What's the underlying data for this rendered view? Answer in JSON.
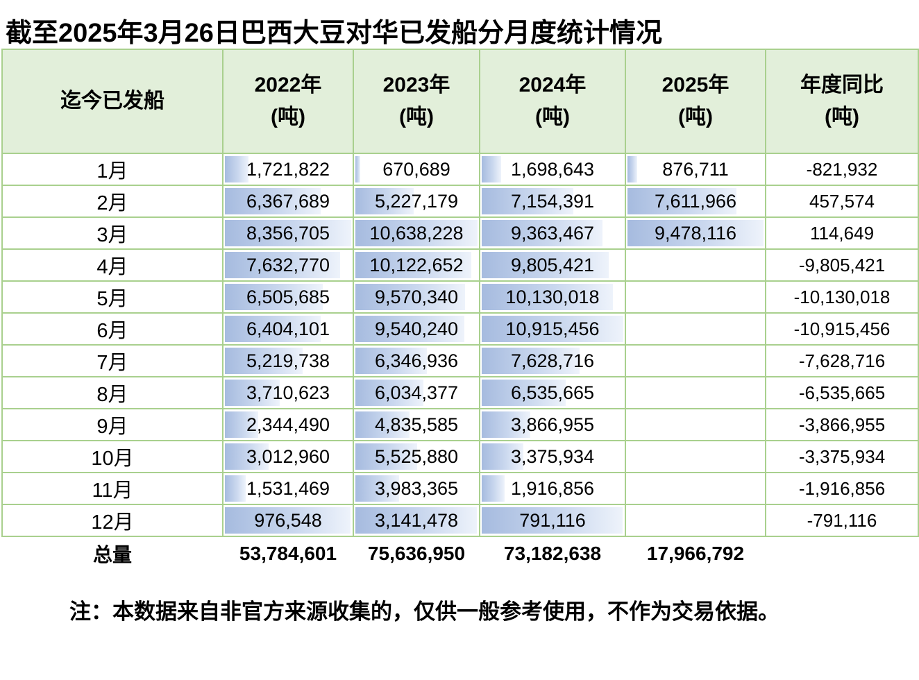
{
  "title": "截至2025年3月26日巴西大豆对华已发船分月度统计情况",
  "note": "注：本数据来自非官方来源收集的，仅供一般参考使用，不作为交易依据。",
  "colors": {
    "header_bg": "#e2efda",
    "grid_border": "#a9d08e",
    "data_bar_start": "#a6bbdf",
    "data_bar_end": "#eef3fb"
  },
  "table": {
    "header": {
      "col1": "迄今已发船",
      "years": [
        {
          "line1": "2022年",
          "line2": "(吨)"
        },
        {
          "line1": "2023年",
          "line2": "(吨)"
        },
        {
          "line1": "2024年",
          "line2": "(吨)"
        },
        {
          "line1": "2025年",
          "line2": "(吨)"
        }
      ],
      "yoy": {
        "line1": "年度同比",
        "line2": "(吨)"
      }
    },
    "rows": [
      {
        "month": "1月",
        "v2022": "1,721,822",
        "v2023": "670,689",
        "v2024": "1,698,643",
        "v2025": "876,711",
        "yoy": "-821,932"
      },
      {
        "month": "2月",
        "v2022": "6,367,689",
        "v2023": "5,227,179",
        "v2024": "7,154,391",
        "v2025": "7,611,966",
        "yoy": "457,574"
      },
      {
        "month": "3月",
        "v2022": "8,356,705",
        "v2023": "10,638,228",
        "v2024": "9,363,467",
        "v2025": "9,478,116",
        "yoy": "114,649"
      },
      {
        "month": "4月",
        "v2022": "7,632,770",
        "v2023": "10,122,652",
        "v2024": "9,805,421",
        "v2025": "",
        "yoy": "-9,805,421"
      },
      {
        "month": "5月",
        "v2022": "6,505,685",
        "v2023": "9,570,340",
        "v2024": "10,130,018",
        "v2025": "",
        "yoy": "-10,130,018"
      },
      {
        "month": "6月",
        "v2022": "6,404,101",
        "v2023": "9,540,240",
        "v2024": "10,915,456",
        "v2025": "",
        "yoy": "-10,915,456"
      },
      {
        "month": "7月",
        "v2022": "5,219,738",
        "v2023": "6,346,936",
        "v2024": "7,628,716",
        "v2025": "",
        "yoy": "-7,628,716"
      },
      {
        "month": "8月",
        "v2022": "3,710,623",
        "v2023": "6,034,377",
        "v2024": "6,535,665",
        "v2025": "",
        "yoy": "-6,535,665"
      },
      {
        "month": "9月",
        "v2022": "2,344,490",
        "v2023": "4,835,585",
        "v2024": "3,866,955",
        "v2025": "",
        "yoy": "-3,866,955"
      },
      {
        "month": "10月",
        "v2022": "3,012,960",
        "v2023": "5,525,880",
        "v2024": "3,375,934",
        "v2025": "",
        "yoy": "-3,375,934"
      },
      {
        "month": "11月",
        "v2022": "1,531,469",
        "v2023": "3,983,365",
        "v2024": "1,916,856",
        "v2025": "",
        "yoy": "-1,916,856"
      },
      {
        "month": "12月",
        "v2022": "976,548",
        "v2023": "3,141,478",
        "v2024": "791,116",
        "v2025": "",
        "yoy": "-791,116",
        "bars_full": true
      }
    ],
    "total": {
      "label": "总量",
      "v2022": "53,784,601",
      "v2023": "75,636,950",
      "v2024": "73,182,638",
      "v2025": "17,966,792",
      "yoy": ""
    }
  },
  "chart_data": {
    "type": "table",
    "title": "截至2025年3月26日巴西大豆对华已发船分月度统计情况",
    "columns": [
      "迄今已发船",
      "2022年(吨)",
      "2023年(吨)",
      "2024年(吨)",
      "2025年(吨)",
      "年度同比(吨)"
    ],
    "rows": [
      [
        "1月",
        1721822,
        670689,
        1698643,
        876711,
        -821932
      ],
      [
        "2月",
        6367689,
        5227179,
        7154391,
        7611966,
        457574
      ],
      [
        "3月",
        8356705,
        10638228,
        9363467,
        9478116,
        114649
      ],
      [
        "4月",
        7632770,
        10122652,
        9805421,
        null,
        -9805421
      ],
      [
        "5月",
        6505685,
        9570340,
        10130018,
        null,
        -10130018
      ],
      [
        "6月",
        6404101,
        9540240,
        10915456,
        null,
        -10915456
      ],
      [
        "7月",
        5219738,
        6346936,
        7628716,
        null,
        -7628716
      ],
      [
        "8月",
        3710623,
        6034377,
        6535665,
        null,
        -6535665
      ],
      [
        "9月",
        2344490,
        4835585,
        3866955,
        null,
        -3866955
      ],
      [
        "10月",
        3012960,
        5525880,
        3375934,
        null,
        -3375934
      ],
      [
        "11月",
        1531469,
        3983365,
        1916856,
        null,
        -1916856
      ],
      [
        "12月",
        976548,
        3141478,
        791116,
        null,
        -791116
      ]
    ],
    "total_row": [
      "总量",
      53784601,
      75636950,
      73182638,
      17966792,
      null
    ],
    "note": "注：本数据来自非官方来源收集的，仅供一般参考使用，不作为交易依据。",
    "layout_hints": "数值列内含蓝色渐变数据条（按各列最大值比例），12月行数据条为整格渐变填充"
  }
}
